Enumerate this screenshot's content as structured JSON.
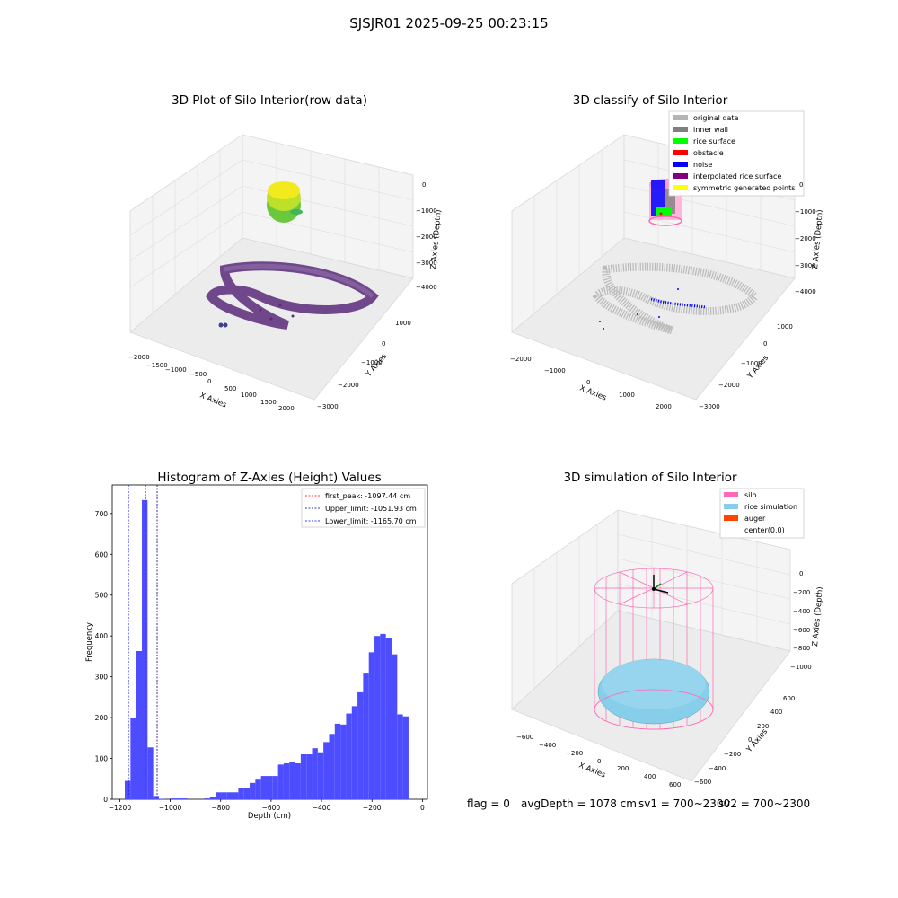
{
  "figure": {
    "suptitle": "SJSJR01 2025-09-25 00:23:15"
  },
  "colors": {
    "raw_low": "#3b0f5a",
    "raw_mid": "#2aa58a",
    "raw_high": "#f2ea1c",
    "original_data": "#b4b4b4",
    "inner_wall": "#808080",
    "rice_surface": "#00ff00",
    "obstacle": "#ff0000",
    "noise": "#0000ff",
    "interpolated": "#800080",
    "symmetric": "#ffff00",
    "silo": "#ff69b4",
    "rice_sim": "#87ceeb",
    "auger": "#ff4500",
    "hist_bar": "#4d4dff"
  },
  "chart_data": [
    {
      "type": "scatter",
      "projection": "3d",
      "title": "3D Plot of Silo Interior(row data)",
      "xlabel": "X Axies",
      "ylabel": "Y Axies",
      "zlabel": "Z Axies (Depth)",
      "xticks": [
        "−2000",
        "−1500",
        "−1000",
        "−500",
        "0",
        "500",
        "1000",
        "1500",
        "2000"
      ],
      "yticks": [
        "−3000",
        "−2000",
        "−1000",
        "0",
        "1000"
      ],
      "zticks": [
        "0",
        "−1000",
        "−2000",
        "−3000",
        "−4000"
      ],
      "xlim": [
        -2000,
        2000
      ],
      "ylim": [
        -3000,
        1000
      ],
      "zlim": [
        -4200,
        0
      ],
      "grid": true
    },
    {
      "type": "scatter",
      "projection": "3d",
      "title": "3D classify of Silo Interior",
      "xlabel": "X Axies",
      "ylabel": "Y Axies",
      "zlabel": "Z Axies (Depth)",
      "xticks": [
        "−2000",
        "−1000",
        "0",
        "1000",
        "2000"
      ],
      "yticks": [
        "−3000",
        "−2000",
        "−1000",
        "0",
        "1000"
      ],
      "zticks": [
        "0",
        "−1000",
        "−2000",
        "−3000",
        "−4000"
      ],
      "legend_position": "upper-right",
      "legend": [
        "original data",
        "inner wall",
        "rice surface",
        "obstacle",
        "noise",
        "interpolated rice surface",
        "symmetric generated points"
      ],
      "grid": true
    },
    {
      "type": "bar",
      "title": "Histogram of Z-Axies (Height) Values",
      "xlabel": "Depth (cm)",
      "ylabel": "Frequency",
      "xlim": [
        -1230,
        20
      ],
      "ylim": [
        0,
        770
      ],
      "xticks": [
        -1200,
        -1000,
        -800,
        -600,
        -400,
        -200,
        0
      ],
      "yticks": [
        0,
        100,
        200,
        300,
        400,
        500,
        600,
        700
      ],
      "xtick_labels": [
        "−1200",
        "−1000",
        "−800",
        "−600",
        "−400",
        "−200",
        "0"
      ],
      "bin_width": 22.5,
      "bins": [
        {
          "x0": -1180,
          "v": 45
        },
        {
          "x0": -1157.5,
          "v": 198
        },
        {
          "x0": -1135,
          "v": 363
        },
        {
          "x0": -1112.5,
          "v": 733
        },
        {
          "x0": -1090,
          "v": 127
        },
        {
          "x0": -1067.5,
          "v": 8
        },
        {
          "x0": -1045,
          "v": 1
        },
        {
          "x0": -1000,
          "v": 2
        },
        {
          "x0": -977.5,
          "v": 2
        },
        {
          "x0": -955,
          "v": 2
        },
        {
          "x0": -865,
          "v": 2
        },
        {
          "x0": -842.5,
          "v": 5
        },
        {
          "x0": -820,
          "v": 17
        },
        {
          "x0": -797.5,
          "v": 17
        },
        {
          "x0": -775,
          "v": 17
        },
        {
          "x0": -752.5,
          "v": 17
        },
        {
          "x0": -730,
          "v": 28
        },
        {
          "x0": -707.5,
          "v": 28
        },
        {
          "x0": -685,
          "v": 40
        },
        {
          "x0": -662.5,
          "v": 48
        },
        {
          "x0": -640,
          "v": 57
        },
        {
          "x0": -617.5,
          "v": 57
        },
        {
          "x0": -595,
          "v": 57
        },
        {
          "x0": -572.5,
          "v": 85
        },
        {
          "x0": -550,
          "v": 88
        },
        {
          "x0": -527.5,
          "v": 92
        },
        {
          "x0": -505,
          "v": 88
        },
        {
          "x0": -482.5,
          "v": 110
        },
        {
          "x0": -460,
          "v": 110
        },
        {
          "x0": -437.5,
          "v": 125
        },
        {
          "x0": -415,
          "v": 115
        },
        {
          "x0": -392.5,
          "v": 140
        },
        {
          "x0": -370,
          "v": 160
        },
        {
          "x0": -347.5,
          "v": 185
        },
        {
          "x0": -325,
          "v": 183
        },
        {
          "x0": -302.5,
          "v": 210
        },
        {
          "x0": -280,
          "v": 228
        },
        {
          "x0": -257.5,
          "v": 262
        },
        {
          "x0": -235,
          "v": 310
        },
        {
          "x0": -212.5,
          "v": 360
        },
        {
          "x0": -190,
          "v": 400
        },
        {
          "x0": -167.5,
          "v": 405
        },
        {
          "x0": -145,
          "v": 395
        },
        {
          "x0": -122.5,
          "v": 355
        },
        {
          "x0": -100,
          "v": 208
        },
        {
          "x0": -77.5,
          "v": 203
        }
      ],
      "vlines": [
        {
          "label": "first_peak: -1097.44 cm",
          "x": -1097.44,
          "color": "#ff0000"
        },
        {
          "label": "Upper_limit: -1051.93 cm",
          "x": -1051.93,
          "color": "#000080"
        },
        {
          "label": "Lower_limit: -1165.70 cm",
          "x": -1165.7,
          "color": "#0000ff"
        }
      ],
      "legend_position": "upper-right"
    },
    {
      "type": "scatter",
      "projection": "3d",
      "title": "3D simulation of Silo Interior",
      "xlabel": "X Axies",
      "ylabel": "Y Axies",
      "zlabel": "Z Axies (Depth)",
      "xticks": [
        "−600",
        "−400",
        "−200",
        "0",
        "200",
        "400",
        "600"
      ],
      "yticks": [
        "−600",
        "−400",
        "−200",
        "0",
        "200",
        "400",
        "600"
      ],
      "zticks": [
        "0",
        "−200",
        "−400",
        "−600",
        "−800",
        "−1000"
      ],
      "legend_position": "upper-right",
      "legend": [
        "silo",
        "rice simulation",
        "auger",
        "center(0,0)"
      ],
      "grid": true
    }
  ],
  "status": {
    "flag": "flag = 0",
    "avg": "avgDepth = 1078 cm",
    "sv1": "sv1 = 700~2300",
    "sv2": "sv2 = 700~2300"
  }
}
